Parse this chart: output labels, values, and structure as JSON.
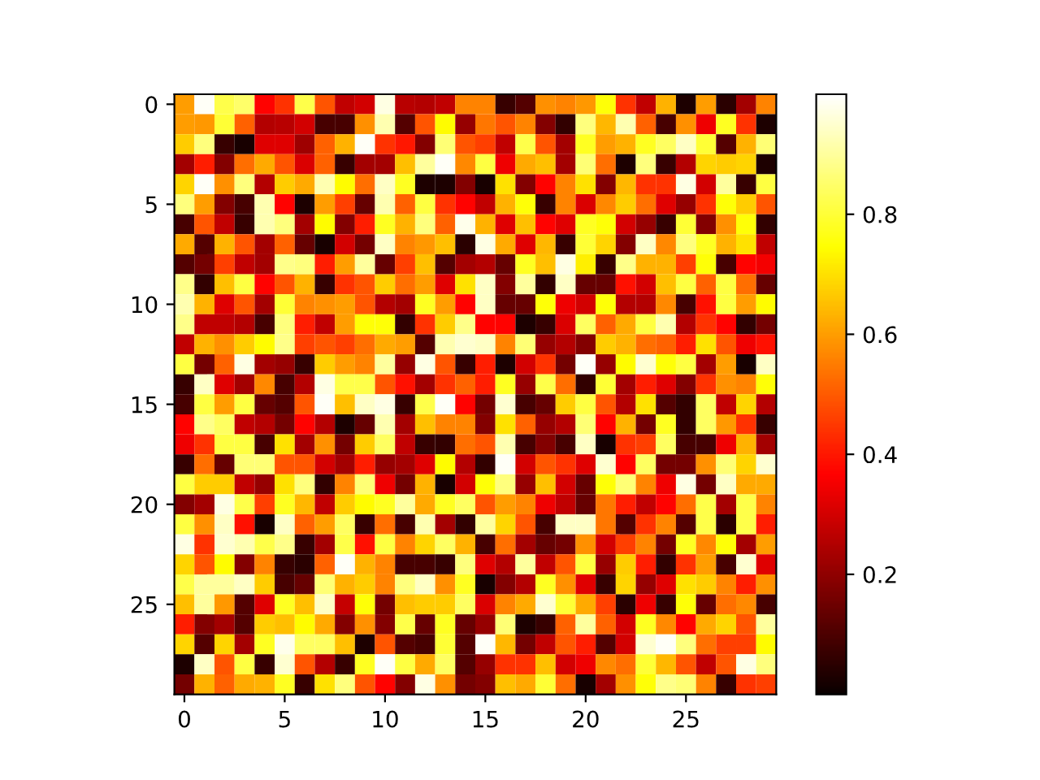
{
  "chart_data": {
    "type": "heatmap",
    "categories": [
      "0",
      null,
      null,
      null,
      null,
      "5",
      null,
      null,
      null,
      null,
      "10",
      null,
      null,
      null,
      null,
      "15",
      null,
      null,
      null,
      null,
      "20",
      null,
      null,
      null,
      null,
      "25",
      null,
      null,
      null,
      null
    ],
    "y_categories": [
      "0",
      null,
      null,
      null,
      null,
      "5",
      null,
      null,
      null,
      null,
      "10",
      null,
      null,
      null,
      null,
      "15",
      null,
      null,
      null,
      null,
      "20",
      null,
      null,
      null,
      null,
      "25",
      null,
      null,
      null,
      null
    ],
    "clim": [
      0.0,
      1.0
    ],
    "cticks": [
      0.2,
      0.4,
      0.6,
      0.8
    ],
    "cells": [
      [
        0.6,
        0.99,
        0.82,
        0.85,
        0.37,
        0.44,
        0.82,
        0.49,
        0.27,
        0.3,
        0.97,
        0.26,
        0.25,
        0.27,
        0.56,
        0.56,
        0.07,
        0.11,
        0.58,
        0.56,
        0.59,
        0.75,
        0.44,
        0.27,
        0.63,
        0.03,
        0.6,
        0.05,
        0.23,
        0.56
      ],
      [
        0.6,
        0.59,
        0.8,
        0.51,
        0.25,
        0.26,
        0.3,
        0.09,
        0.09,
        0.58,
        0.92,
        0.11,
        0.49,
        0.74,
        0.21,
        0.54,
        0.49,
        0.56,
        0.18,
        0.06,
        0.87,
        0.64,
        0.92,
        0.51,
        0.09,
        0.58,
        0.34,
        0.78,
        0.44,
        0.03
      ],
      [
        0.67,
        0.87,
        0.07,
        0.02,
        0.32,
        0.32,
        0.22,
        0.51,
        0.63,
        0.99,
        0.44,
        0.4,
        0.18,
        0.86,
        0.49,
        0.46,
        0.27,
        0.82,
        0.49,
        0.23,
        0.78,
        0.6,
        0.63,
        0.78,
        0.84,
        0.94,
        0.8,
        0.11,
        0.63,
        0.86
      ],
      [
        0.23,
        0.41,
        0.18,
        0.53,
        0.62,
        0.49,
        0.31,
        0.51,
        0.07,
        0.23,
        0.23,
        0.65,
        0.9,
        0.99,
        0.57,
        0.81,
        0.34,
        0.62,
        0.65,
        0.23,
        0.86,
        0.53,
        0.03,
        0.87,
        0.07,
        0.25,
        0.68,
        0.67,
        0.68,
        0.03
      ],
      [
        0.68,
        0.99,
        0.58,
        0.87,
        0.25,
        0.67,
        0.62,
        0.92,
        0.74,
        0.53,
        0.94,
        0.78,
        0.03,
        0.03,
        0.18,
        0.02,
        0.7,
        0.18,
        0.37,
        0.56,
        0.7,
        0.18,
        0.64,
        0.44,
        0.44,
        0.97,
        0.3,
        0.9,
        0.07,
        0.81
      ],
      [
        0.87,
        0.6,
        0.18,
        0.09,
        0.92,
        0.37,
        0.03,
        0.6,
        0.46,
        0.14,
        0.92,
        0.51,
        0.81,
        0.44,
        0.37,
        0.27,
        0.63,
        0.75,
        0.07,
        0.56,
        0.31,
        0.57,
        0.67,
        0.53,
        0.32,
        0.21,
        0.44,
        0.75,
        0.67,
        0.49
      ],
      [
        0.09,
        0.49,
        0.27,
        0.07,
        0.92,
        0.87,
        0.23,
        0.74,
        0.18,
        0.41,
        0.78,
        0.63,
        0.87,
        0.51,
        0.98,
        0.63,
        0.32,
        0.65,
        0.37,
        0.32,
        0.78,
        0.75,
        0.3,
        0.21,
        0.07,
        0.8,
        0.18,
        0.58,
        0.75,
        0.06
      ],
      [
        0.62,
        0.11,
        0.63,
        0.49,
        0.23,
        0.51,
        0.14,
        0.02,
        0.3,
        0.16,
        0.94,
        0.56,
        0.59,
        0.65,
        0.05,
        0.97,
        0.62,
        0.32,
        0.64,
        0.07,
        0.8,
        0.68,
        0.18,
        0.94,
        0.57,
        0.87,
        0.78,
        0.63,
        0.7,
        0.27
      ],
      [
        0.11,
        0.16,
        0.46,
        0.27,
        0.23,
        0.88,
        0.87,
        0.41,
        0.6,
        0.9,
        0.14,
        0.46,
        0.65,
        0.11,
        0.23,
        0.25,
        0.14,
        0.78,
        0.65,
        0.97,
        0.72,
        0.07,
        0.88,
        0.63,
        0.63,
        0.46,
        0.75,
        0.09,
        0.37,
        0.35
      ],
      [
        0.88,
        0.06,
        0.65,
        0.81,
        0.37,
        0.49,
        0.63,
        0.07,
        0.44,
        0.49,
        0.67,
        0.53,
        0.6,
        0.32,
        0.7,
        0.94,
        0.18,
        0.9,
        0.06,
        0.94,
        0.14,
        0.14,
        0.39,
        0.3,
        0.65,
        0.81,
        0.51,
        0.81,
        0.53,
        0.14
      ],
      [
        0.92,
        0.63,
        0.32,
        0.49,
        0.23,
        0.8,
        0.56,
        0.58,
        0.6,
        0.49,
        0.25,
        0.23,
        0.78,
        0.6,
        0.37,
        0.94,
        0.14,
        0.14,
        0.75,
        0.34,
        0.3,
        0.75,
        0.25,
        0.25,
        0.57,
        0.09,
        0.39,
        0.81,
        0.6,
        0.74
      ],
      [
        0.88,
        0.27,
        0.27,
        0.25,
        0.09,
        0.87,
        0.41,
        0.27,
        0.6,
        0.75,
        0.75,
        0.06,
        0.44,
        0.67,
        0.88,
        0.37,
        0.37,
        0.03,
        0.07,
        0.31,
        0.84,
        0.51,
        0.62,
        0.81,
        0.92,
        0.25,
        0.44,
        0.37,
        0.06,
        0.16
      ],
      [
        0.27,
        0.63,
        0.58,
        0.67,
        0.74,
        0.88,
        0.46,
        0.49,
        0.46,
        0.53,
        0.62,
        0.6,
        0.11,
        0.92,
        0.95,
        0.94,
        0.56,
        0.86,
        0.21,
        0.25,
        0.18,
        0.67,
        0.63,
        0.53,
        0.51,
        0.41,
        0.7,
        0.49,
        0.34,
        0.39
      ],
      [
        0.81,
        0.16,
        0.51,
        0.97,
        0.23,
        0.21,
        0.07,
        0.67,
        0.6,
        0.56,
        0.9,
        0.21,
        0.97,
        0.49,
        0.07,
        0.41,
        0.03,
        0.3,
        0.44,
        0.16,
        0.99,
        0.21,
        0.74,
        0.95,
        0.75,
        0.81,
        0.23,
        0.6,
        0.02,
        0.94
      ],
      [
        0.07,
        0.94,
        0.32,
        0.23,
        0.57,
        0.09,
        0.25,
        0.97,
        0.82,
        0.82,
        0.49,
        0.39,
        0.23,
        0.44,
        0.51,
        0.41,
        0.78,
        0.21,
        0.82,
        0.53,
        0.06,
        0.8,
        0.23,
        0.41,
        0.32,
        0.18,
        0.44,
        0.58,
        0.56,
        0.75
      ],
      [
        0.09,
        0.81,
        0.6,
        0.81,
        0.14,
        0.11,
        0.49,
        0.99,
        0.65,
        0.94,
        0.97,
        0.07,
        0.82,
        0.99,
        0.37,
        0.16,
        0.95,
        0.09,
        0.14,
        0.67,
        0.81,
        0.49,
        0.25,
        0.7,
        0.11,
        0.06,
        0.84,
        0.27,
        0.68,
        0.25
      ],
      [
        0.37,
        0.88,
        0.84,
        0.27,
        0.25,
        0.16,
        0.37,
        0.25,
        0.03,
        0.14,
        0.92,
        0.23,
        0.65,
        0.56,
        0.56,
        0.18,
        0.7,
        0.51,
        0.21,
        0.25,
        0.86,
        0.37,
        0.63,
        0.16,
        0.78,
        0.06,
        0.84,
        0.59,
        0.44,
        0.07
      ],
      [
        0.34,
        0.44,
        0.81,
        0.81,
        0.09,
        0.7,
        0.23,
        0.58,
        0.16,
        0.67,
        0.84,
        0.27,
        0.07,
        0.06,
        0.53,
        0.49,
        0.92,
        0.09,
        0.18,
        0.09,
        0.94,
        0.02,
        0.44,
        0.46,
        0.84,
        0.09,
        0.09,
        0.34,
        0.63,
        0.23
      ],
      [
        0.07,
        0.53,
        0.14,
        0.86,
        0.86,
        0.49,
        0.49,
        0.3,
        0.23,
        0.41,
        0.21,
        0.23,
        0.32,
        0.74,
        0.25,
        0.06,
        0.99,
        0.3,
        0.49,
        0.44,
        0.32,
        0.95,
        0.37,
        0.84,
        0.16,
        0.16,
        0.58,
        0.86,
        0.68,
        0.95
      ],
      [
        0.81,
        0.67,
        0.67,
        0.27,
        0.21,
        0.7,
        0.87,
        0.06,
        0.56,
        0.86,
        0.34,
        0.16,
        0.63,
        0.02,
        0.3,
        0.75,
        0.87,
        0.21,
        0.65,
        0.3,
        0.14,
        0.75,
        0.86,
        0.56,
        0.34,
        0.97,
        0.16,
        0.94,
        0.62,
        0.62
      ],
      [
        0.18,
        0.23,
        0.97,
        0.82,
        0.46,
        0.78,
        0.64,
        0.27,
        0.67,
        0.74,
        0.78,
        0.9,
        0.62,
        0.78,
        0.84,
        0.49,
        0.6,
        0.56,
        0.34,
        0.27,
        0.14,
        0.54,
        0.41,
        0.27,
        0.37,
        0.53,
        0.82,
        0.23,
        0.82,
        0.56
      ],
      [
        0.81,
        0.58,
        0.94,
        0.39,
        0.02,
        0.94,
        0.51,
        0.6,
        0.84,
        0.07,
        0.53,
        0.09,
        0.92,
        0.23,
        0.06,
        0.9,
        0.68,
        0.49,
        0.09,
        0.94,
        0.94,
        0.54,
        0.11,
        0.44,
        0.56,
        0.11,
        0.82,
        0.05,
        0.82,
        0.41
      ],
      [
        0.97,
        0.44,
        0.95,
        0.92,
        0.82,
        0.88,
        0.07,
        0.23,
        0.82,
        0.39,
        0.81,
        0.56,
        0.68,
        0.84,
        0.63,
        0.09,
        0.53,
        0.23,
        0.14,
        0.16,
        0.58,
        0.3,
        0.46,
        0.56,
        0.16,
        0.78,
        0.57,
        0.75,
        0.23,
        0.6
      ],
      [
        0.68,
        0.49,
        0.74,
        0.18,
        0.56,
        0.07,
        0.05,
        0.51,
        0.99,
        0.63,
        0.56,
        0.09,
        0.09,
        0.07,
        0.87,
        0.32,
        0.25,
        0.9,
        0.27,
        0.49,
        0.81,
        0.21,
        0.67,
        0.41,
        0.06,
        0.44,
        0.6,
        0.09,
        0.95,
        0.32
      ],
      [
        0.82,
        0.9,
        0.9,
        0.94,
        0.67,
        0.09,
        0.14,
        0.86,
        0.63,
        0.67,
        0.56,
        0.87,
        0.94,
        0.58,
        0.78,
        0.02,
        0.18,
        0.25,
        0.78,
        0.58,
        0.32,
        0.07,
        0.68,
        0.21,
        0.32,
        0.7,
        0.67,
        0.56,
        0.41,
        0.58
      ],
      [
        0.65,
        0.9,
        0.59,
        0.11,
        0.32,
        0.78,
        0.65,
        0.94,
        0.28,
        0.75,
        0.16,
        0.65,
        0.67,
        0.67,
        0.84,
        0.31,
        0.56,
        0.62,
        0.95,
        0.8,
        0.62,
        0.46,
        0.05,
        0.34,
        0.07,
        0.75,
        0.14,
        0.53,
        0.57,
        0.09
      ],
      [
        0.41,
        0.18,
        0.23,
        0.11,
        0.67,
        0.65,
        0.74,
        0.62,
        0.18,
        0.58,
        0.18,
        0.82,
        0.14,
        0.78,
        0.14,
        0.21,
        0.86,
        0.03,
        0.07,
        0.51,
        0.9,
        0.51,
        0.3,
        0.78,
        0.57,
        0.37,
        0.62,
        0.68,
        0.49,
        0.9
      ],
      [
        0.68,
        0.11,
        0.68,
        0.23,
        0.78,
        0.98,
        0.84,
        0.84,
        0.65,
        0.03,
        0.49,
        0.11,
        0.09,
        0.8,
        0.11,
        0.99,
        0.64,
        0.16,
        0.27,
        0.49,
        0.41,
        0.11,
        0.3,
        0.95,
        0.99,
        0.87,
        0.53,
        0.46,
        0.46,
        0.74
      ],
      [
        0.03,
        0.94,
        0.49,
        0.81,
        0.07,
        0.95,
        0.49,
        0.25,
        0.07,
        0.78,
        0.99,
        0.81,
        0.62,
        0.84,
        0.11,
        0.21,
        0.44,
        0.44,
        0.65,
        0.3,
        0.34,
        0.57,
        0.53,
        0.8,
        0.64,
        0.49,
        0.27,
        0.49,
        0.97,
        0.87
      ],
      [
        0.16,
        0.63,
        0.51,
        0.62,
        0.63,
        0.78,
        0.07,
        0.7,
        0.87,
        0.49,
        0.37,
        0.18,
        0.97,
        0.58,
        0.16,
        0.18,
        0.65,
        0.62,
        0.8,
        0.53,
        0.02,
        0.23,
        0.58,
        0.75,
        0.88,
        0.86,
        0.56,
        0.07,
        0.44,
        0.46
      ]
    ]
  }
}
